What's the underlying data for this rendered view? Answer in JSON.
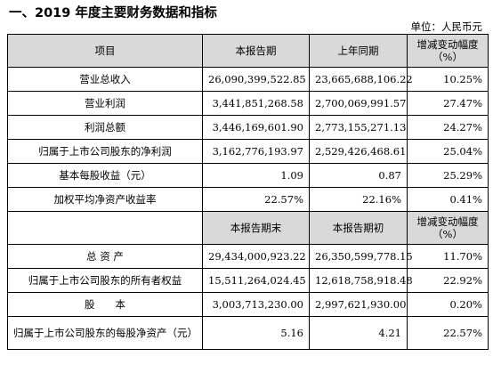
{
  "title": "一、2019 年度主要财务数据和指标",
  "unit": "单位：人民币元",
  "header1": [
    "项目",
    "本报告期",
    "上年同期",
    "增减变动幅度（%）"
  ],
  "rows1": [
    [
      "营业总收入",
      "26,090,399,522.85",
      "23,665,688,106.22",
      "10.25%"
    ],
    [
      "营业利润",
      "3,441,851,268.58",
      "2,700,069,991.57",
      "27.47%"
    ],
    [
      "利润总额",
      "3,446,169,601.90",
      "2,773,155,271.13",
      "24.27%"
    ],
    [
      "归属于上市公司股东的净利润",
      "3,162,776,193.97",
      "2,529,426,468.61",
      "25.04%"
    ],
    [
      "基本每股收益（元）",
      "1.09",
      "0.87",
      "25.29%"
    ],
    [
      "加权平均净资产收益率",
      "22.57%",
      "22.16%",
      "0.41%"
    ]
  ],
  "header2": [
    "",
    "本报告期末",
    "本报告期初",
    "增减变动幅度（%）"
  ],
  "rows2": [
    [
      "总 资 产",
      "29,434,000,923.22",
      "26,350,599,778.15",
      "11.70%"
    ],
    [
      "归属于上市公司股东的所有者权益",
      "15,511,264,024.45",
      "12,618,758,918.48",
      "22.92%"
    ],
    [
      "股　　本",
      "3,003,713,230.00",
      "2,997,621,930.00",
      "0.20%"
    ],
    [
      "归属于上市公司股东的每股净资产（元）",
      "5.16",
      "4.21",
      "22.57%"
    ]
  ]
}
